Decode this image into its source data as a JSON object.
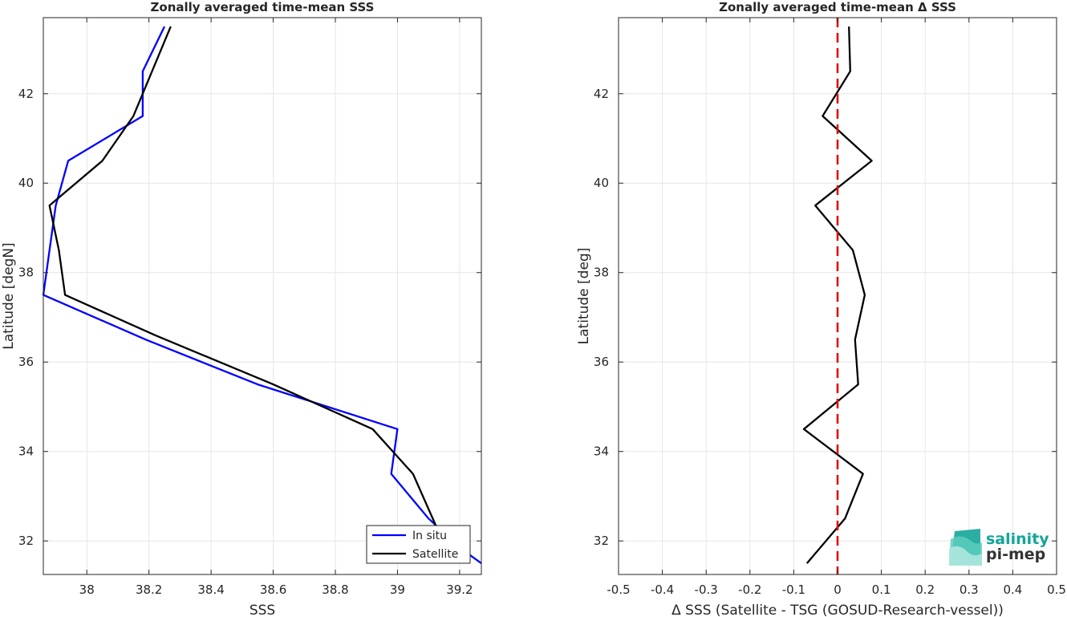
{
  "chart_data": [
    {
      "type": "line",
      "title": "Zonally averaged time-mean SSS",
      "xlabel": "SSS",
      "ylabel": "Latitude [degN]",
      "xlim": [
        37.86,
        39.27
      ],
      "ylim": [
        31.25,
        43.7
      ],
      "xticks": [
        38,
        38.2,
        38.4,
        38.6,
        38.8,
        39,
        39.2
      ],
      "yticks": [
        32,
        34,
        36,
        38,
        40,
        42
      ],
      "grid": true,
      "legend": "bottom-right",
      "series": [
        {
          "name": "In situ",
          "color": "#0000ff",
          "points": [
            [
              38.25,
              43.5
            ],
            [
              38.18,
              42.5
            ],
            [
              38.18,
              41.5
            ],
            [
              37.94,
              40.5
            ],
            [
              37.9,
              39.5
            ],
            [
              37.88,
              38.5
            ],
            [
              37.86,
              37.5
            ],
            [
              38.19,
              36.5
            ],
            [
              38.55,
              35.5
            ],
            [
              39.0,
              34.5
            ],
            [
              38.98,
              33.5
            ],
            [
              39.1,
              32.5
            ],
            [
              39.21,
              31.8
            ],
            [
              39.27,
              31.5
            ]
          ]
        },
        {
          "name": "Satellite",
          "color": "#000000",
          "points": [
            [
              38.27,
              43.5
            ],
            [
              38.21,
              42.5
            ],
            [
              38.15,
              41.5
            ],
            [
              38.05,
              40.5
            ],
            [
              37.88,
              39.5
            ],
            [
              37.91,
              38.5
            ],
            [
              37.93,
              37.5
            ],
            [
              38.22,
              36.6
            ],
            [
              38.6,
              35.5
            ],
            [
              38.92,
              34.5
            ],
            [
              39.05,
              33.5
            ],
            [
              39.12,
              32.4
            ],
            [
              39.13,
              32.2
            ]
          ]
        }
      ]
    },
    {
      "type": "line",
      "title": "Zonally averaged time-mean Δ SSS",
      "xlabel": "Δ SSS (Satellite - TSG (GOSUD-Research-vessel))",
      "ylabel": "Latitude [deg]",
      "xlim": [
        -0.5,
        0.5
      ],
      "ylim": [
        31.25,
        43.7
      ],
      "xticks": [
        -0.5,
        -0.4,
        -0.3,
        -0.2,
        -0.1,
        0,
        0.1,
        0.2,
        0.3,
        0.4,
        0.5
      ],
      "yticks": [
        32,
        34,
        36,
        38,
        40,
        42
      ],
      "grid": true,
      "reference_line": {
        "x": 0,
        "color": "#e01010",
        "style": "dashed"
      },
      "series": [
        {
          "color": "#000000",
          "points": [
            [
              0.026,
              43.5
            ],
            [
              0.029,
              42.5
            ],
            [
              -0.034,
              41.5
            ],
            [
              0.078,
              40.5
            ],
            [
              -0.051,
              39.5
            ],
            [
              0.035,
              38.5
            ],
            [
              0.062,
              37.5
            ],
            [
              0.04,
              36.5
            ],
            [
              0.047,
              35.5
            ],
            [
              -0.077,
              34.5
            ],
            [
              0.058,
              33.5
            ],
            [
              0.017,
              32.5
            ],
            [
              -0.07,
              31.5
            ]
          ]
        }
      ]
    }
  ],
  "logo": {
    "line1": "salinity",
    "line2": "pi-mep",
    "color": "#14a59a"
  }
}
